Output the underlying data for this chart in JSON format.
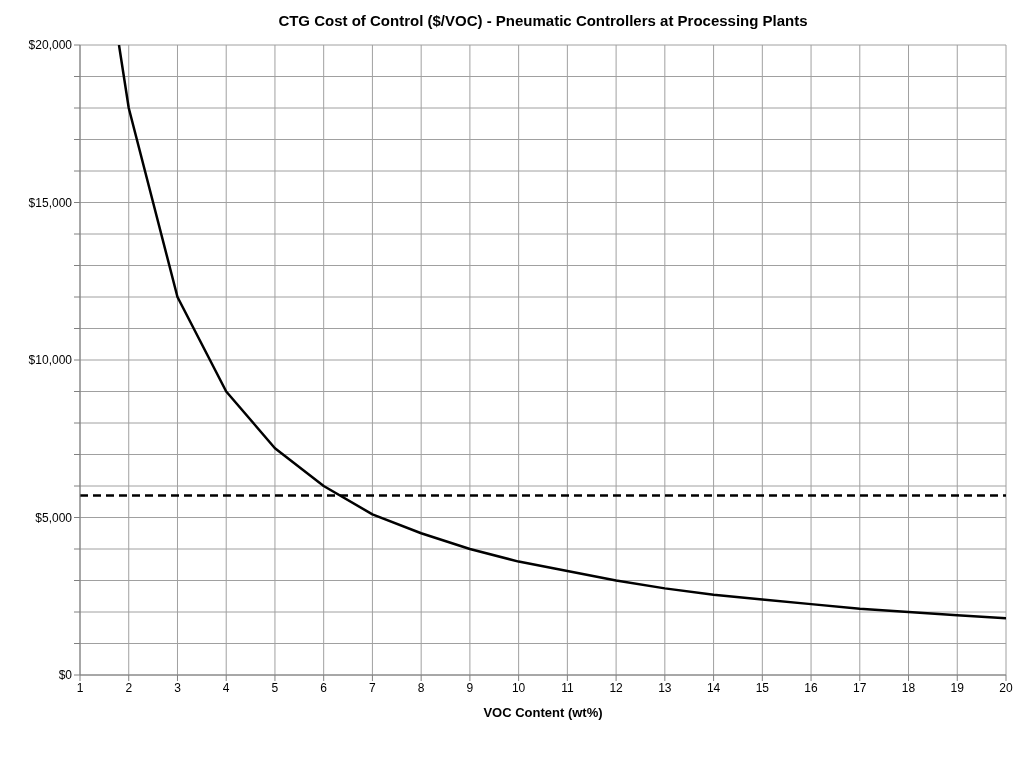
{
  "chart_data": {
    "type": "line",
    "title": "CTG Cost of Control ($/VOC) - Pneumatic Controllers at Processing Plants",
    "xlabel": "VOC Content (wt%)",
    "x": [
      1.8,
      2,
      3,
      4,
      5,
      6,
      7,
      8,
      9,
      10,
      11,
      12,
      13,
      14,
      15,
      16,
      17,
      18,
      19,
      20
    ],
    "series": [
      {
        "color": "#000000",
        "values": [
          20000,
          18000,
          12000,
          9000,
          7200,
          6000,
          5100,
          4500,
          4000,
          3600,
          3300,
          3000,
          2750,
          2550,
          2400,
          2250,
          2100,
          2000,
          1900,
          1800
        ]
      }
    ],
    "xlim": [
      1,
      20
    ],
    "xticks": [
      1,
      2,
      3,
      4,
      5,
      6,
      7,
      8,
      9,
      10,
      11,
      12,
      13,
      14,
      15,
      16,
      17,
      18,
      19,
      20
    ],
    "ylim": [
      0,
      20000
    ],
    "yticks": [
      {
        "value": 0,
        "label": "$0"
      },
      {
        "value": 1000,
        "label": null
      },
      {
        "value": 2000,
        "label": null
      },
      {
        "value": 3000,
        "label": null
      },
      {
        "value": 4000,
        "label": null
      },
      {
        "value": 5000,
        "label": "$5,000"
      },
      {
        "value": 6000,
        "label": null
      },
      {
        "value": 7000,
        "label": null
      },
      {
        "value": 8000,
        "label": null
      },
      {
        "value": 9000,
        "label": null
      },
      {
        "value": 10000,
        "label": "$10,000"
      },
      {
        "value": 11000,
        "label": null
      },
      {
        "value": 12000,
        "label": null
      },
      {
        "value": 13000,
        "label": null
      },
      {
        "value": 14000,
        "label": null
      },
      {
        "value": 15000,
        "label": "$15,000"
      },
      {
        "value": 16000,
        "label": null
      },
      {
        "value": 17000,
        "label": null
      },
      {
        "value": 18000,
        "label": null
      },
      {
        "value": 19000,
        "label": null
      },
      {
        "value": 20000,
        "label": "$20,000"
      }
    ],
    "ref_lines": [
      {
        "axis": "y",
        "value": 5700,
        "color": "#000000",
        "line_style": "dashed"
      }
    ],
    "grid": true,
    "legend": false,
    "marker": "none",
    "line_style": "solid"
  }
}
